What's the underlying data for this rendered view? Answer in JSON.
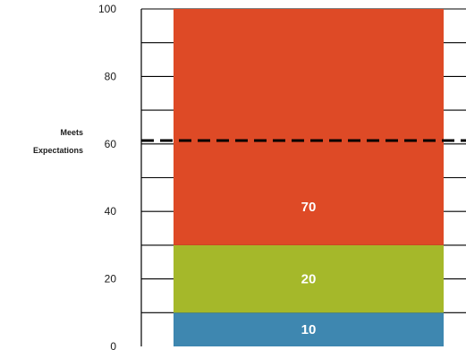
{
  "chart_data": {
    "type": "bar",
    "stacked": true,
    "categories": [
      ""
    ],
    "series": [
      {
        "values": [
          10
        ],
        "color": "#3e87b0",
        "label": "10"
      },
      {
        "values": [
          20
        ],
        "color": "#a5b82a",
        "label": "20"
      },
      {
        "values": [
          70
        ],
        "color": "#de4a26",
        "label": "70"
      }
    ],
    "ylim": [
      0,
      100
    ],
    "yticks": [
      "0",
      "20",
      "40",
      "60",
      "80",
      "100"
    ],
    "minor_grid_step": 10,
    "grid": true,
    "reference_line": {
      "y": 61,
      "style": "dashed",
      "label_lines": [
        "Meets",
        "Expectations"
      ]
    },
    "title": "",
    "xlabel": "",
    "ylabel": ""
  }
}
